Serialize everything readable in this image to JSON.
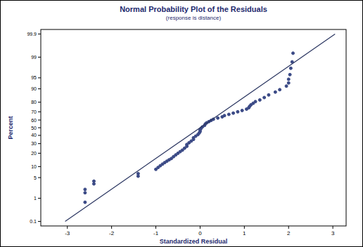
{
  "chart_data": {
    "type": "probability_plot",
    "title": "Normal Probability Plot of the Residuals",
    "subtitle": "(response is distance)",
    "x_label": "Standardized Residual",
    "y_label": "Percent",
    "xlim": [
      -3.6,
      3.3
    ],
    "xticks": [
      -3,
      -2,
      -1,
      0,
      1,
      2,
      3
    ],
    "ylim": [
      0.06,
      99.94
    ],
    "yticks": [
      0.1,
      1,
      5,
      10,
      20,
      30,
      40,
      50,
      60,
      70,
      80,
      90,
      95,
      99,
      99.9
    ],
    "grid": false,
    "series": [
      {
        "type": "scatter",
        "marker": "circle",
        "color": "#3b4a86",
        "x": [
          -2.6,
          -2.6,
          -2.6,
          -2.4,
          -2.4,
          -1.4,
          -1.4,
          -1.0,
          -0.95,
          -0.9,
          -0.85,
          -0.8,
          -0.75,
          -0.7,
          -0.65,
          -0.6,
          -0.55,
          -0.5,
          -0.45,
          -0.4,
          -0.35,
          -0.3,
          -0.3,
          -0.25,
          -0.2,
          -0.15,
          -0.15,
          -0.1,
          -0.05,
          -0.02,
          0.0,
          0.0,
          0.02,
          0.05,
          0.1,
          0.12,
          0.15,
          0.2,
          0.25,
          0.3,
          0.4,
          0.5,
          0.55,
          0.65,
          0.75,
          0.85,
          0.95,
          1.05,
          1.1,
          1.12,
          1.15,
          1.2,
          1.25,
          1.35,
          1.45,
          1.55,
          1.7,
          1.8,
          1.95,
          2.0,
          2.0,
          2.03,
          2.05,
          2.08,
          2.1
        ],
        "values": [
          0.7,
          1.6,
          2.1,
          3.2,
          3.9,
          5.5,
          6.5,
          8.5,
          9.5,
          10.5,
          11.5,
          12.5,
          13.5,
          14.5,
          15.5,
          17,
          18.5,
          20,
          21.5,
          23,
          25,
          27,
          29,
          31,
          33,
          35,
          37,
          39,
          41,
          43,
          45,
          47,
          49,
          51,
          53,
          55,
          56.5,
          58,
          59.5,
          61,
          62.5,
          64,
          65.5,
          67,
          68.5,
          70,
          71.5,
          73,
          74.5,
          76,
          77.5,
          79,
          80.5,
          82,
          84,
          86,
          88,
          89.5,
          91.5,
          93,
          94.5,
          96,
          97.5,
          98.5,
          99.3
        ]
      },
      {
        "type": "line",
        "line_style": "solid",
        "color": "#2a3560",
        "x": [
          -3.05,
          3.05
        ],
        "values": [
          0.1,
          99.9
        ]
      }
    ]
  }
}
